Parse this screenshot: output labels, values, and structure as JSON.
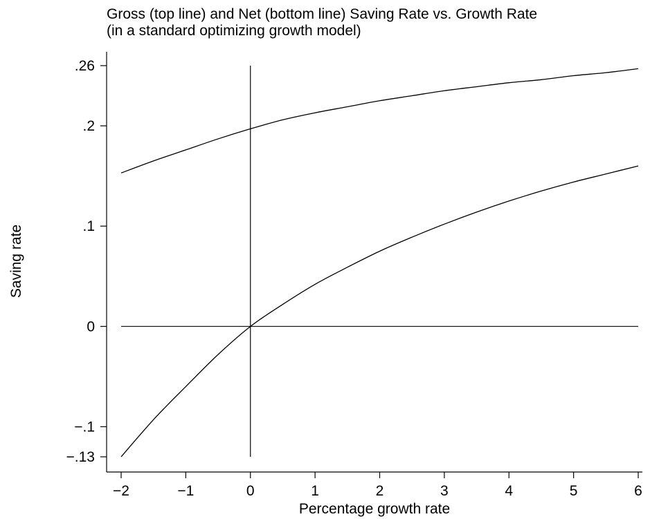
{
  "chart_data": {
    "type": "line",
    "title": [
      "Gross (top line) and Net (bottom line) Saving Rate vs. Growth Rate",
      "(in a standard optimizing growth model)"
    ],
    "xlabel": "Percentage growth rate",
    "ylabel": "Saving rate",
    "xlim": [
      -2,
      6
    ],
    "ylim": [
      -0.13,
      0.26
    ],
    "xticks": [
      {
        "value": -2,
        "label": "−2"
      },
      {
        "value": -1,
        "label": "−1"
      },
      {
        "value": 0,
        "label": "0"
      },
      {
        "value": 1,
        "label": "1"
      },
      {
        "value": 2,
        "label": "2"
      },
      {
        "value": 3,
        "label": "3"
      },
      {
        "value": 4,
        "label": "4"
      },
      {
        "value": 5,
        "label": "5"
      },
      {
        "value": 6,
        "label": "6"
      }
    ],
    "yticks": [
      {
        "value": 0.26,
        "label": ".26"
      },
      {
        "value": 0.2,
        "label": ".2"
      },
      {
        "value": 0.1,
        "label": ".1"
      },
      {
        "value": 0,
        "label": "0"
      },
      {
        "value": -0.1,
        "label": "−.1"
      },
      {
        "value": -0.13,
        "label": "−.13"
      }
    ],
    "grid": false,
    "legend": "none",
    "x": [
      -2,
      -1.5,
      -1,
      -0.5,
      0,
      0.5,
      1,
      1.5,
      2,
      2.5,
      3,
      3.5,
      4,
      4.5,
      5,
      5.5,
      6
    ],
    "series": [
      {
        "values": [
          0.153,
          0.165,
          0.176,
          0.187,
          0.197,
          0.206,
          0.213,
          0.219,
          0.225,
          0.23,
          0.235,
          0.239,
          0.243,
          0.246,
          0.25,
          0.253,
          0.257
        ]
      },
      {
        "values": [
          -0.13,
          -0.093,
          -0.06,
          -0.028,
          0.0,
          0.022,
          0.042,
          0.059,
          0.075,
          0.089,
          0.102,
          0.114,
          0.125,
          0.135,
          0.144,
          0.152,
          0.16
        ]
      }
    ],
    "reference_lines": [
      {
        "orientation": "vertical",
        "at": 0,
        "from": -0.13,
        "to": 0.26
      },
      {
        "orientation": "horizontal",
        "at": 0,
        "from": -2,
        "to": 6
      }
    ]
  }
}
